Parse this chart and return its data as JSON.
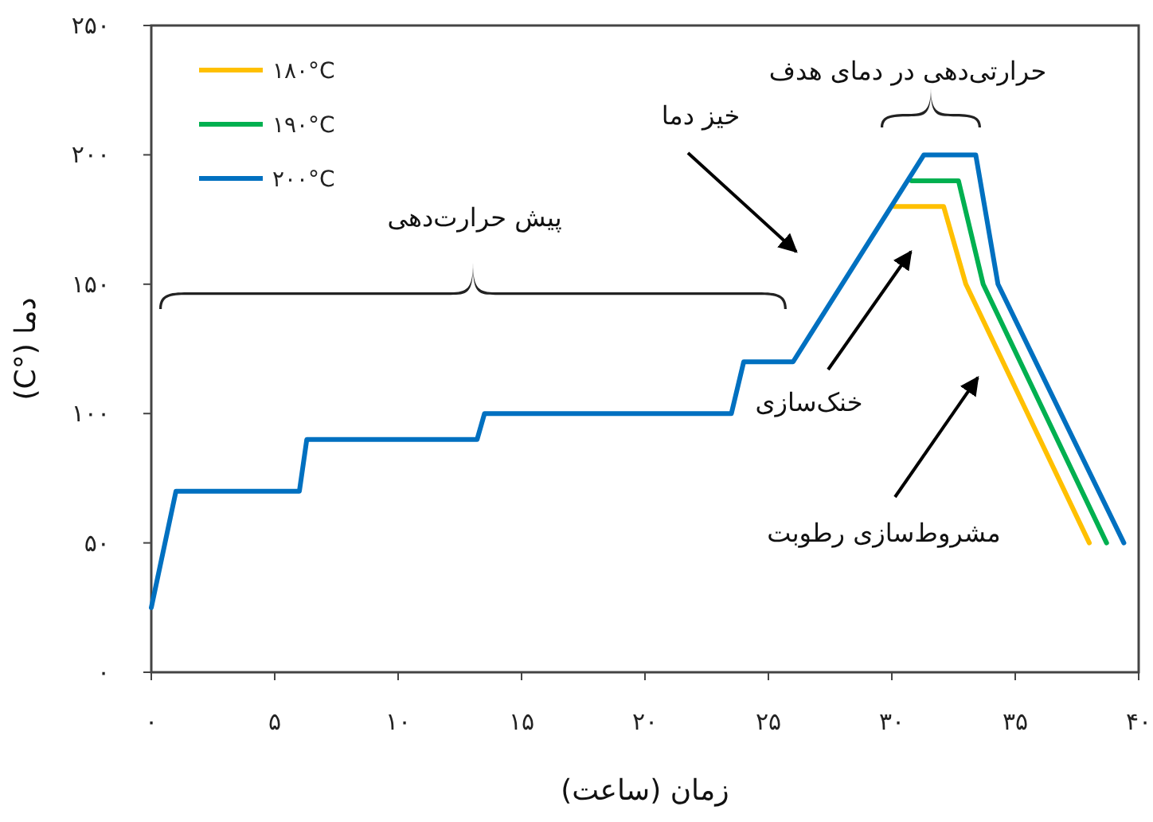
{
  "chart_data": {
    "type": "line",
    "xlabel": "زمان (ساعت)",
    "ylabel": "دما (°C)",
    "xlim": [
      0,
      40
    ],
    "ylim": [
      0,
      250
    ],
    "xticks": [
      {
        "value": 0,
        "label": "۰"
      },
      {
        "value": 5,
        "label": "۵"
      },
      {
        "value": 10,
        "label": "۱۰"
      },
      {
        "value": 15,
        "label": "۱۵"
      },
      {
        "value": 20,
        "label": "۲۰"
      },
      {
        "value": 25,
        "label": "۲۵"
      },
      {
        "value": 30,
        "label": "۳۰"
      },
      {
        "value": 35,
        "label": "۳۵"
      },
      {
        "value": 40,
        "label": "۴۰"
      }
    ],
    "yticks": [
      {
        "value": 0,
        "label": "۰"
      },
      {
        "value": 50,
        "label": "۵۰"
      },
      {
        "value": 100,
        "label": "۱۰۰"
      },
      {
        "value": 150,
        "label": "۱۵۰"
      },
      {
        "value": 200,
        "label": "۲۰۰"
      },
      {
        "value": 250,
        "label": "۲۵۰"
      }
    ],
    "grid": false,
    "legend": "top left",
    "marker": "none",
    "line_style": "solid",
    "series": [
      {
        "name": "۱۸۰°C",
        "color": "#ffc000",
        "x": [
          30.1,
          32.1,
          33.0,
          38.0
        ],
        "values": [
          180,
          180,
          150,
          50
        ]
      },
      {
        "name": "۱۹۰°C",
        "color": "#00b050",
        "x": [
          30.8,
          32.7,
          33.7,
          38.7
        ],
        "values": [
          190,
          190,
          150,
          50
        ]
      },
      {
        "name": "۲۰۰°C",
        "color": "#0070c0",
        "x": [
          0,
          1,
          6,
          6.3,
          13.2,
          13.5,
          23.5,
          24,
          26,
          31.3,
          33.4,
          34.3,
          39.4
        ],
        "values": [
          25,
          70,
          70,
          90,
          90,
          100,
          100,
          120,
          120,
          200,
          200,
          150,
          50
        ]
      }
    ],
    "annotations": [
      "پیش حرارت‌دهی",
      "خیز دما",
      "حرارتی‌دهی  در دمای هدف",
      "خنک‌سازی",
      "مشروط‌سازی رطوبت"
    ]
  }
}
